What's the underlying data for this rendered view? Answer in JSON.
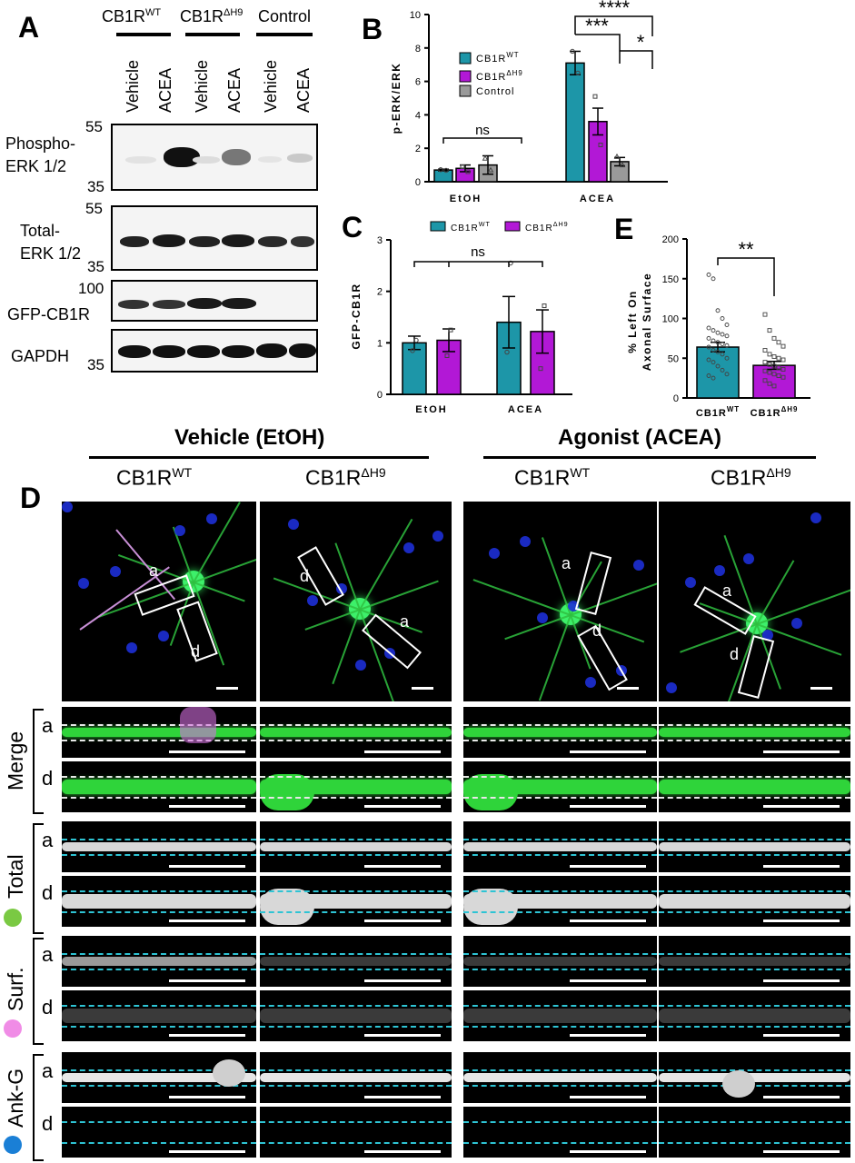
{
  "panel_labels": {
    "a": "A",
    "b": "B",
    "c": "C",
    "d": "D",
    "e": "E"
  },
  "panelA": {
    "groups": [
      {
        "main": "CB1R",
        "sup": "WT"
      },
      {
        "main": "CB1R",
        "sup": "ΔH9"
      },
      {
        "main": "Control",
        "sup": ""
      }
    ],
    "lanes": [
      "Vehicle",
      "ACEA",
      "Vehicle",
      "ACEA",
      "Vehicle",
      "ACEA"
    ],
    "blots": [
      {
        "label1": "Phospho-",
        "label2": "ERK 1/2",
        "mw_top": "55",
        "mw_bottom": "35"
      },
      {
        "label1": "Total-",
        "label2": "ERK 1/2",
        "mw_top": "55",
        "mw_bottom": "35"
      },
      {
        "label1": "GFP-CB1R",
        "label2": "",
        "mw_top": "100",
        "mw_bottom": ""
      },
      {
        "label1": "GAPDH",
        "label2": "",
        "mw_top": "",
        "mw_bottom": "35"
      }
    ]
  },
  "chart_data": [
    {
      "panel": "B",
      "type": "bar",
      "categories": [
        "EtOH",
        "ACEA"
      ],
      "series": [
        {
          "name": "CB1R^WT",
          "values": [
            0.7,
            7.1
          ]
        },
        {
          "name": "CB1R^ΔH9",
          "values": [
            0.8,
            3.6
          ]
        },
        {
          "name": "Control",
          "values": [
            1.0,
            1.2
          ]
        }
      ],
      "ylabel": "p-ERK/ERK",
      "ylim": [
        0,
        10
      ],
      "yticks": [
        "0",
        "2",
        "4",
        "6",
        "8",
        "10"
      ],
      "significance": [
        "ns",
        "****",
        "***",
        "*"
      ],
      "legend_position": "upper-left"
    },
    {
      "panel": "C",
      "type": "bar",
      "categories": [
        "EtOH",
        "ACEA"
      ],
      "series": [
        {
          "name": "CB1R^WT",
          "values": [
            1.0,
            1.4
          ]
        },
        {
          "name": "CB1R^ΔH9",
          "values": [
            1.05,
            1.22
          ]
        }
      ],
      "ylabel": "GFP-CB1R",
      "ylim": [
        0,
        3
      ],
      "yticks": [
        "0",
        "1",
        "2",
        "3"
      ],
      "significance": [
        "ns"
      ],
      "legend_position": "top"
    },
    {
      "panel": "E",
      "type": "bar",
      "categories": [
        "CB1R^WT",
        "CB1R^ΔH9"
      ],
      "values": [
        64,
        41
      ],
      "ylabel_line1": "% Left On",
      "ylabel_line2": "Axonal Surface",
      "ylim": [
        0,
        200
      ],
      "yticks": [
        "0",
        "50",
        "100",
        "150",
        "200"
      ],
      "significance": [
        "**"
      ]
    }
  ],
  "panelB": {
    "legend": [
      {
        "main": "CB1R",
        "sup": "WT"
      },
      {
        "main": "CB1R",
        "sup": "ΔH9"
      },
      {
        "main": "Control",
        "sup": ""
      }
    ]
  },
  "panelC": {
    "legend": [
      {
        "main": "CB1R",
        "sup": "WT"
      },
      {
        "main": "CB1R",
        "sup": "ΔH9"
      }
    ]
  },
  "panelE": {
    "xlabels": [
      {
        "main": "CB1R",
        "sup": "WT"
      },
      {
        "main": "CB1R",
        "sup": "ΔH9"
      }
    ]
  },
  "panelD": {
    "conditions": [
      "Vehicle (EtOH)",
      "Agonist (ACEA)"
    ],
    "genotypes": [
      {
        "main": "CB1R",
        "sup": "WT"
      },
      {
        "main": "CB1R",
        "sup": "ΔH9"
      },
      {
        "main": "CB1R",
        "sup": "WT"
      },
      {
        "main": "CB1R",
        "sup": "ΔH9"
      }
    ],
    "box_labels": [
      "a",
      "d"
    ],
    "row_groups": [
      "Merge",
      "Total",
      "Surf.",
      "Ank-G"
    ],
    "row_letters": [
      "a",
      "d"
    ],
    "dot_colors": {
      "Total": "#7ac943",
      "Surf.": "#f08ce6",
      "Ank-G": "#1a7fd6"
    }
  },
  "colors": {
    "wt": "#1d96a8",
    "dh9": "#b218d6",
    "control": "#9a9a9a"
  }
}
